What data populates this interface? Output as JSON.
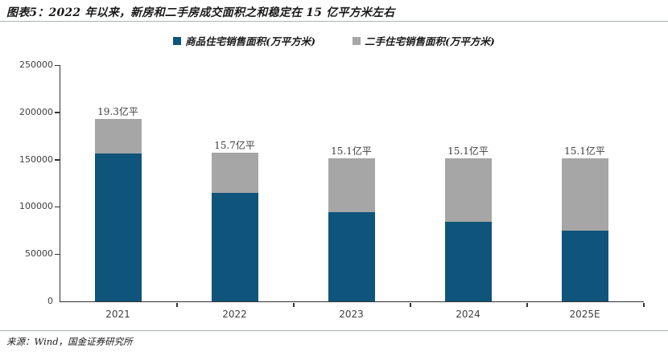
{
  "title": "图表5：2022 年以来，新房和二手房成交面积之和稳定在 15 亿平方米左右",
  "source": "来源：Wind，国金证券研究所",
  "colors": {
    "new_home_blue": "#0F547A",
    "second_hand_gray": "#A6A6A6",
    "axis": "#333333",
    "title_text": "#1A1A1A",
    "tick_text": "#404040",
    "separator": "#A9B3BD"
  },
  "chart_data": {
    "type": "bar",
    "stacked": true,
    "title": "2022 年以来，新房和二手房成交面积之和稳定在 15 亿平方米左右",
    "categories": [
      "2021",
      "2022",
      "2023",
      "2024",
      "2025E"
    ],
    "series": [
      {
        "name": "商品住宅销售面积(万平方米)",
        "color": "#0F547A",
        "values": [
          156500,
          114600,
          94800,
          84300,
          75000
        ]
      },
      {
        "name": "二手住宅销售面积(万平方米)",
        "color": "#A6A6A6",
        "values": [
          36500,
          42400,
          56200,
          66700,
          76000
        ]
      }
    ],
    "totals": [
      193000,
      157000,
      151000,
      151000,
      151000
    ],
    "total_labels": [
      "19.3亿平",
      "15.7亿平",
      "15.1亿平",
      "15.1亿平",
      "15.1亿平"
    ],
    "xlabel": "",
    "ylabel": "",
    "ylim": [
      0,
      250000
    ],
    "ytick_interval": 50000,
    "yticks": [
      "0",
      "50000",
      "100000",
      "150000",
      "200000",
      "250000"
    ],
    "grid": false,
    "legend_position": "top-center"
  }
}
